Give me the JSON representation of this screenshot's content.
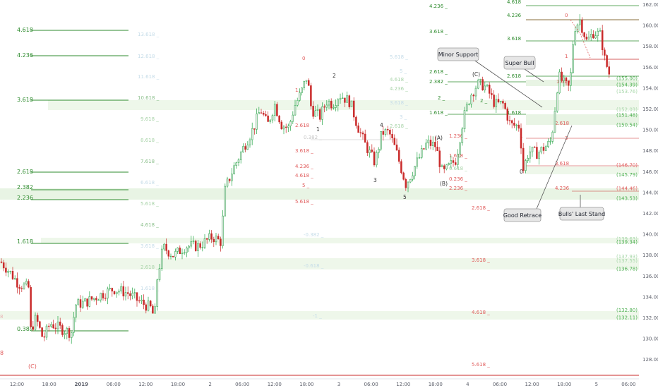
{
  "colors": {
    "up": "#e7e7e7",
    "up_edge": "#26a646",
    "down": "#c92a2a",
    "green_line": "#2e8b2e",
    "green_text": "#4caf50",
    "red_text": "#e05b5b",
    "faded_green": "#a5d6a7",
    "faded_red": "#f4b6b6",
    "zone": "#dff0d8",
    "axis_text": "#5d606b"
  },
  "chart_data": {
    "type": "candlestick",
    "title": "",
    "ylim": [
      127.3,
      162.4
    ],
    "y_ticks": [
      "162.00",
      "160.00",
      "158.00",
      "156.00",
      "154.00",
      "152.00",
      "150.00",
      "148.00",
      "146.00",
      "144.00",
      "142.00",
      "140.00",
      "138.00",
      "136.00",
      "134.00",
      "132.00",
      "130.00",
      "128.00"
    ],
    "x_ticks": [
      "12:00",
      "18:00",
      "2019",
      "06:00",
      "12:00",
      "18:00",
      "2",
      "06:00",
      "12:00",
      "18:00",
      "3",
      "06:00",
      "12:00",
      "18:00",
      "4",
      "06:00",
      "12:00",
      "18:00",
      "5",
      "06:00"
    ],
    "price_path": [
      [
        0,
        137.4
      ],
      [
        12,
        136.5
      ],
      [
        25,
        135.3
      ],
      [
        40,
        134.9
      ],
      [
        42,
        130.8
      ],
      [
        50,
        132.0
      ],
      [
        60,
        130.0
      ],
      [
        70,
        131.5
      ],
      [
        85,
        131.0
      ],
      [
        100,
        130.6
      ],
      [
        106,
        133.3
      ],
      [
        120,
        133.5
      ],
      [
        140,
        134.2
      ],
      [
        160,
        134.8
      ],
      [
        180,
        134.4
      ],
      [
        196,
        133.6
      ],
      [
        212,
        133.0
      ],
      [
        218,
        132.0
      ],
      [
        222,
        136.0
      ],
      [
        230,
        138.8
      ],
      [
        245,
        138.0
      ],
      [
        262,
        138.9
      ],
      [
        280,
        138.9
      ],
      [
        300,
        139.8
      ],
      [
        312,
        139.3
      ],
      [
        318,
        144.4
      ],
      [
        330,
        146.4
      ],
      [
        345,
        148.5
      ],
      [
        358,
        150.2
      ],
      [
        368,
        152.0
      ],
      [
        378,
        150.5
      ],
      [
        388,
        152.5
      ],
      [
        398,
        150.5
      ],
      [
        408,
        150.2
      ],
      [
        416,
        152.3
      ],
      [
        425,
        153.5
      ],
      [
        434,
        155.2
      ],
      [
        440,
        152.0
      ],
      [
        452,
        151.3
      ],
      [
        462,
        152.8
      ],
      [
        470,
        152.5
      ],
      [
        480,
        153.4
      ],
      [
        495,
        152.7
      ],
      [
        505,
        150.5
      ],
      [
        515,
        148.8
      ],
      [
        530,
        146.9
      ],
      [
        540,
        149.8
      ],
      [
        550,
        149.8
      ],
      [
        560,
        148.0
      ],
      [
        574,
        144.8
      ],
      [
        590,
        147.0
      ],
      [
        604,
        148.8
      ],
      [
        616,
        148.5
      ],
      [
        626,
        145.8
      ],
      [
        636,
        146.6
      ],
      [
        645,
        147.2
      ],
      [
        655,
        151.0
      ],
      [
        665,
        153.3
      ],
      [
        675,
        154.4
      ],
      [
        684,
        154.3
      ],
      [
        690,
        153.8
      ],
      [
        700,
        152.5
      ],
      [
        712,
        152.5
      ],
      [
        722,
        150.5
      ],
      [
        735,
        150.4
      ],
      [
        740,
        146.2
      ],
      [
        748,
        148.0
      ],
      [
        760,
        147.8
      ],
      [
        775,
        148.6
      ],
      [
        780,
        149.0
      ],
      [
        790,
        155.2
      ],
      [
        800,
        154.3
      ],
      [
        806,
        154.0
      ],
      [
        812,
        159.7
      ],
      [
        820,
        160.6
      ],
      [
        830,
        158.5
      ],
      [
        840,
        159.4
      ],
      [
        850,
        159.1
      ],
      [
        855,
        156.9
      ],
      [
        862,
        155.4
      ]
    ],
    "fib_levels": [
      {
        "label": "4.618",
        "value": 159.5,
        "color": "green"
      },
      {
        "label": "4.236",
        "value": 157.5,
        "color": "green"
      },
      {
        "label": "3.618",
        "value": 152.25,
        "color": "green"
      },
      {
        "label": "2.618",
        "value": 144.4,
        "color": "green"
      },
      {
        "label": "2.382",
        "value": 142.8,
        "color": "green"
      },
      {
        "label": "2.236",
        "value": 141.7,
        "color": "green"
      },
      {
        "label": "1.618",
        "value": 136.5,
        "color": "green"
      },
      {
        "label": "0.382",
        "value": 127.5,
        "color": "green"
      },
      {
        "label": "8",
        "value": 123.3,
        "color": "red"
      },
      {
        "label": "(C)",
        "value": 121.9,
        "color": "red"
      }
    ],
    "price_tags": [
      {
        "text": "(155.00)",
        "value": 155.0,
        "color": "green"
      },
      {
        "text": "(154.39)",
        "value": 154.39,
        "color": "green"
      },
      {
        "text": "(153.76)",
        "value": 153.76,
        "color": "faded_green"
      },
      {
        "text": "(152.03)",
        "value": 152.03,
        "color": "faded_green"
      },
      {
        "text": "(151.48)",
        "value": 151.48,
        "color": "green"
      },
      {
        "text": "(150.54)",
        "value": 150.54,
        "color": "green"
      },
      {
        "text": "(146.70)",
        "value": 146.7,
        "color": "red"
      },
      {
        "text": "(145.79)",
        "value": 145.79,
        "color": "green"
      },
      {
        "text": "(144.46)",
        "value": 144.46,
        "color": "red"
      },
      {
        "text": "(143.53)",
        "value": 143.53,
        "color": "green"
      },
      {
        "text": "(139.63)",
        "value": 139.63,
        "color": "faded_green"
      },
      {
        "text": "(139.34)",
        "value": 139.34,
        "color": "green"
      },
      {
        "text": "(137.93)",
        "value": 137.93,
        "color": "faded_green"
      },
      {
        "text": "(137.55)",
        "value": 137.55,
        "color": "faded_green"
      },
      {
        "text": "(136.78)",
        "value": 136.78,
        "color": "green"
      },
      {
        "text": "(132.80)",
        "value": 132.8,
        "color": "green"
      },
      {
        "text": "(132.11)",
        "value": 132.11,
        "color": "green"
      }
    ],
    "annotations": [
      {
        "text": "Minor Support"
      },
      {
        "text": "Super Bull"
      },
      {
        "text": "Good Retrace"
      },
      {
        "text": "Bulls' Last Stand"
      }
    ]
  }
}
